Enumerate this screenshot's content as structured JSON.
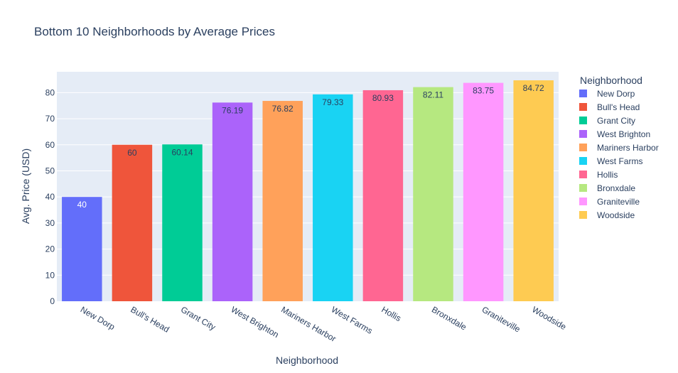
{
  "chart_data": {
    "type": "bar",
    "title": "Bottom 10 Neighborhoods by Average Prices",
    "xlabel": "Neighborhood",
    "ylabel": "Avg. Price (USD)",
    "ylim": [
      0,
      88
    ],
    "yticks": [
      0,
      10,
      20,
      30,
      40,
      50,
      60,
      70,
      80
    ],
    "grid": true,
    "legend_title": "Neighborhood",
    "legend_position": "right",
    "categories": [
      "New Dorp",
      "Bull's Head",
      "Grant City",
      "West Brighton",
      "Mariners Harbor",
      "West Farms",
      "Hollis",
      "Bronxdale",
      "Graniteville",
      "Woodside"
    ],
    "values": [
      40,
      60,
      60.14,
      76.19,
      76.82,
      79.33,
      80.93,
      82.11,
      83.75,
      84.72
    ],
    "labels": [
      "40",
      "60",
      "60.14",
      "76.19",
      "76.82",
      "79.33",
      "80.93",
      "82.11",
      "83.75",
      "84.72"
    ],
    "colors": [
      "#636efa",
      "#EF553B",
      "#00cc96",
      "#ab63fa",
      "#FFA15A",
      "#19d3f3",
      "#FF6692",
      "#B6E880",
      "#FF97FF",
      "#FECB52"
    ],
    "label_colors": [
      "#ffffff",
      "#2a3f5f",
      "#2a3f5f",
      "#2a3f5f",
      "#2a3f5f",
      "#2a3f5f",
      "#2a3f5f",
      "#2a3f5f",
      "#2a3f5f",
      "#2a3f5f"
    ],
    "plot_background": "#E5ECF6"
  }
}
